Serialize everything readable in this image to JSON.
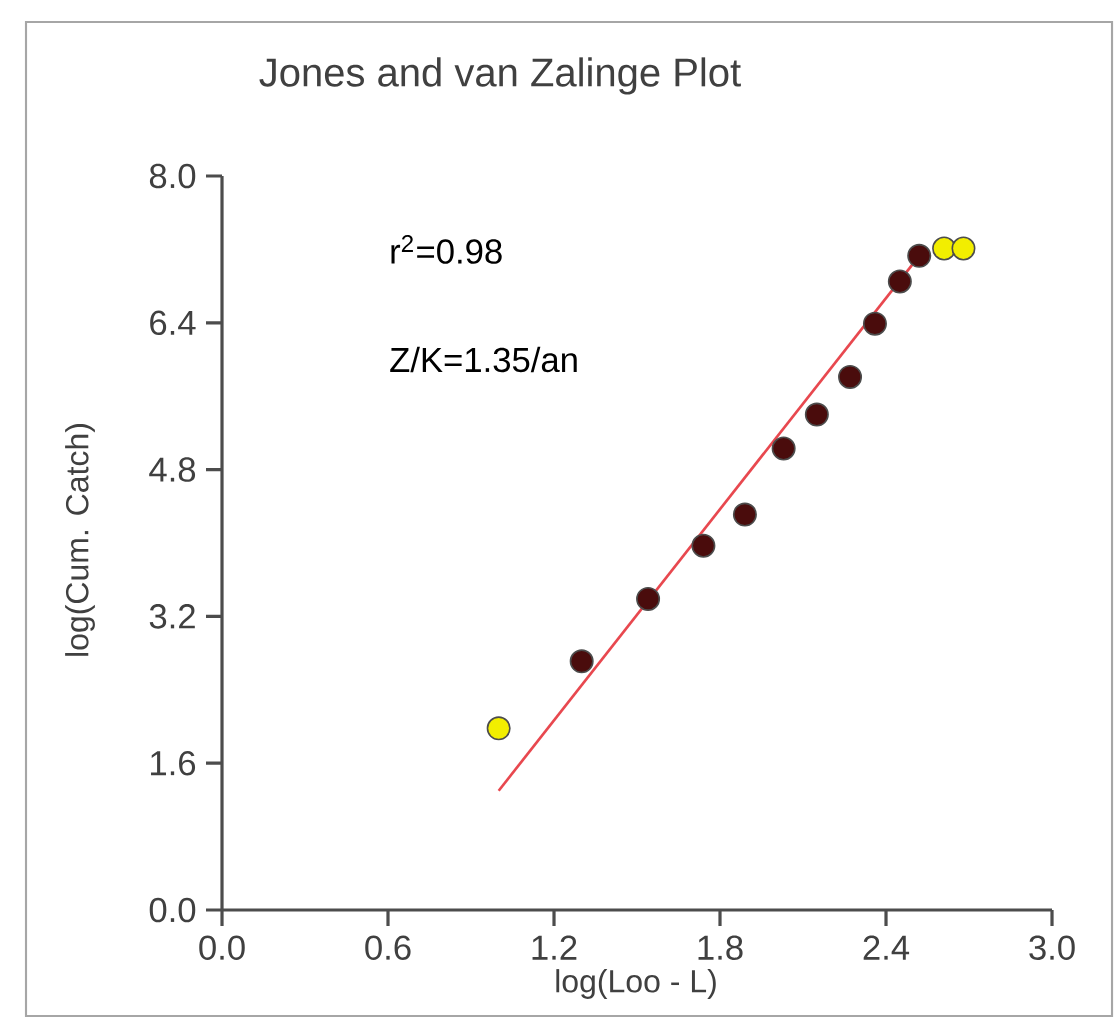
{
  "chart_data": {
    "type": "scatter",
    "title": "Jones and van Zalinge Plot",
    "xlabel": "log(Loo - L)",
    "ylabel": "log(Cum. Catch)",
    "annotations": [
      "r$^{2}$=0.98",
      "Z/K=1.35/an"
    ],
    "xlim": [
      0,
      3.0
    ],
    "ylim": [
      0,
      8.0
    ],
    "xticks": [
      {
        "value": 0,
        "label": "0.0"
      },
      {
        "value": 0.6,
        "label": "0.6"
      },
      {
        "value": 1.2,
        "label": "1.2"
      },
      {
        "value": 1.8,
        "label": "1.8"
      },
      {
        "value": 2.4,
        "label": "2.4"
      },
      {
        "value": 3.0,
        "label": "3.0"
      }
    ],
    "yticks": [
      {
        "value": 0,
        "label": "0.0"
      },
      {
        "value": 1.6,
        "label": "1.6"
      },
      {
        "value": 3.2,
        "label": "3.2"
      },
      {
        "value": 4.8,
        "label": "4.8"
      },
      {
        "value": 6.4,
        "label": "6.4"
      },
      {
        "value": 8.0,
        "label": "8.0"
      }
    ],
    "series": [
      {
        "type": "line",
        "marker": "none",
        "color": "#e8484f",
        "x": [
          1.0,
          2.52
        ],
        "values": [
          1.3,
          7.13
        ]
      },
      {
        "marker": "circle",
        "color": "#4a0c0c",
        "x": [
          1.3,
          1.54,
          1.74,
          1.89,
          2.03,
          2.15,
          2.27,
          2.36,
          2.45,
          2.52
        ],
        "values": [
          2.71,
          3.39,
          3.97,
          4.31,
          5.03,
          5.4,
          5.81,
          6.39,
          6.85,
          7.13
        ]
      },
      {
        "marker": "circle",
        "color": "#f2ee00",
        "x": [
          1.0,
          2.61,
          2.68
        ],
        "values": [
          1.98,
          7.21,
          7.21
        ]
      }
    ]
  }
}
